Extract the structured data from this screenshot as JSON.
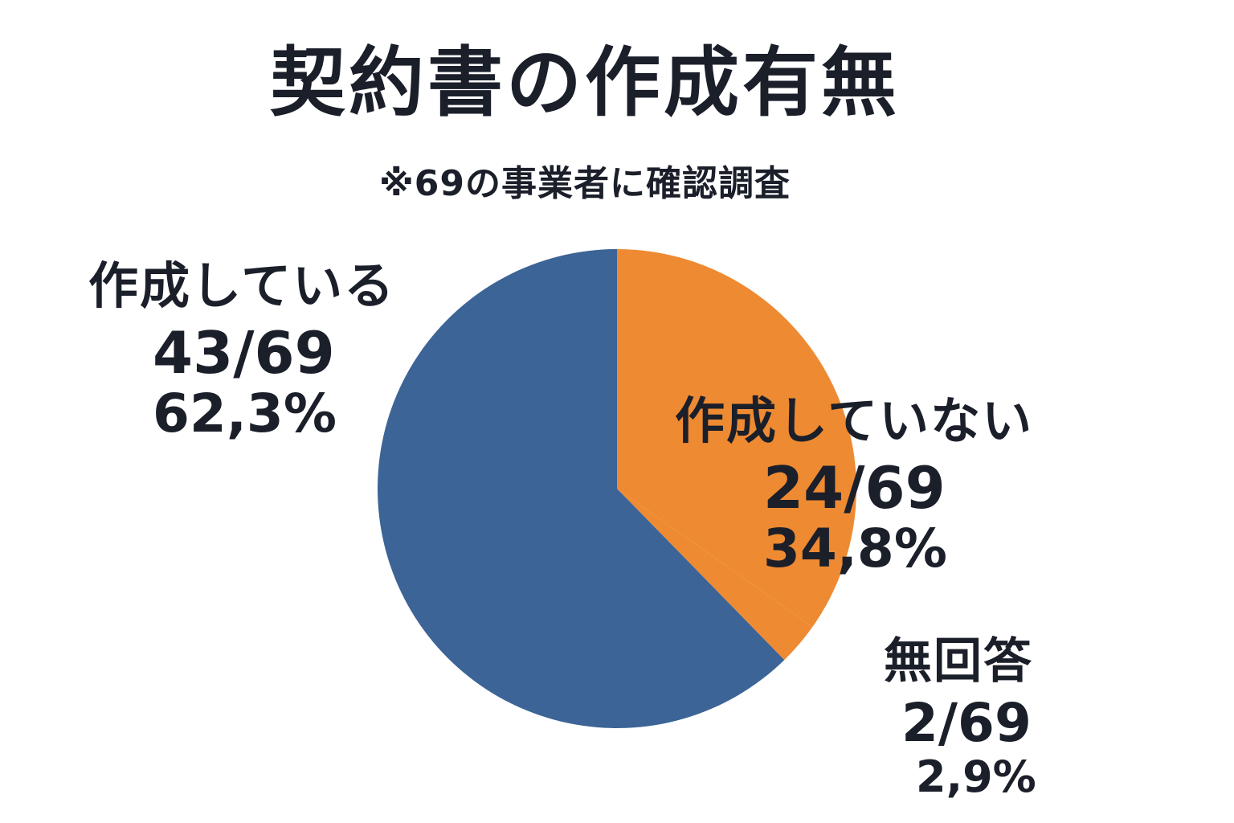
{
  "colors": {
    "made": "#3c6496",
    "not_made": "#ee8a32",
    "no_answer": "#ee8a32"
  },
  "chart_data": {
    "type": "pie",
    "title": "契約書の作成有無",
    "subtitle": "※69の事業者に確認調査",
    "total": 69,
    "slices": [
      {
        "label": "作成している",
        "count": 43,
        "fraction_text": "43/69",
        "percent_text": "62,3%",
        "value": 62.3,
        "color": "#3c6496"
      },
      {
        "label": "作成していない",
        "count": 24,
        "fraction_text": "24/69",
        "percent_text": "34,8%",
        "value": 34.8,
        "color": "#ee8a32"
      },
      {
        "label": "無回答",
        "count": 2,
        "fraction_text": "2/69",
        "percent_text": "2,9%",
        "value": 2.9,
        "color": "#ee8a32"
      }
    ]
  }
}
